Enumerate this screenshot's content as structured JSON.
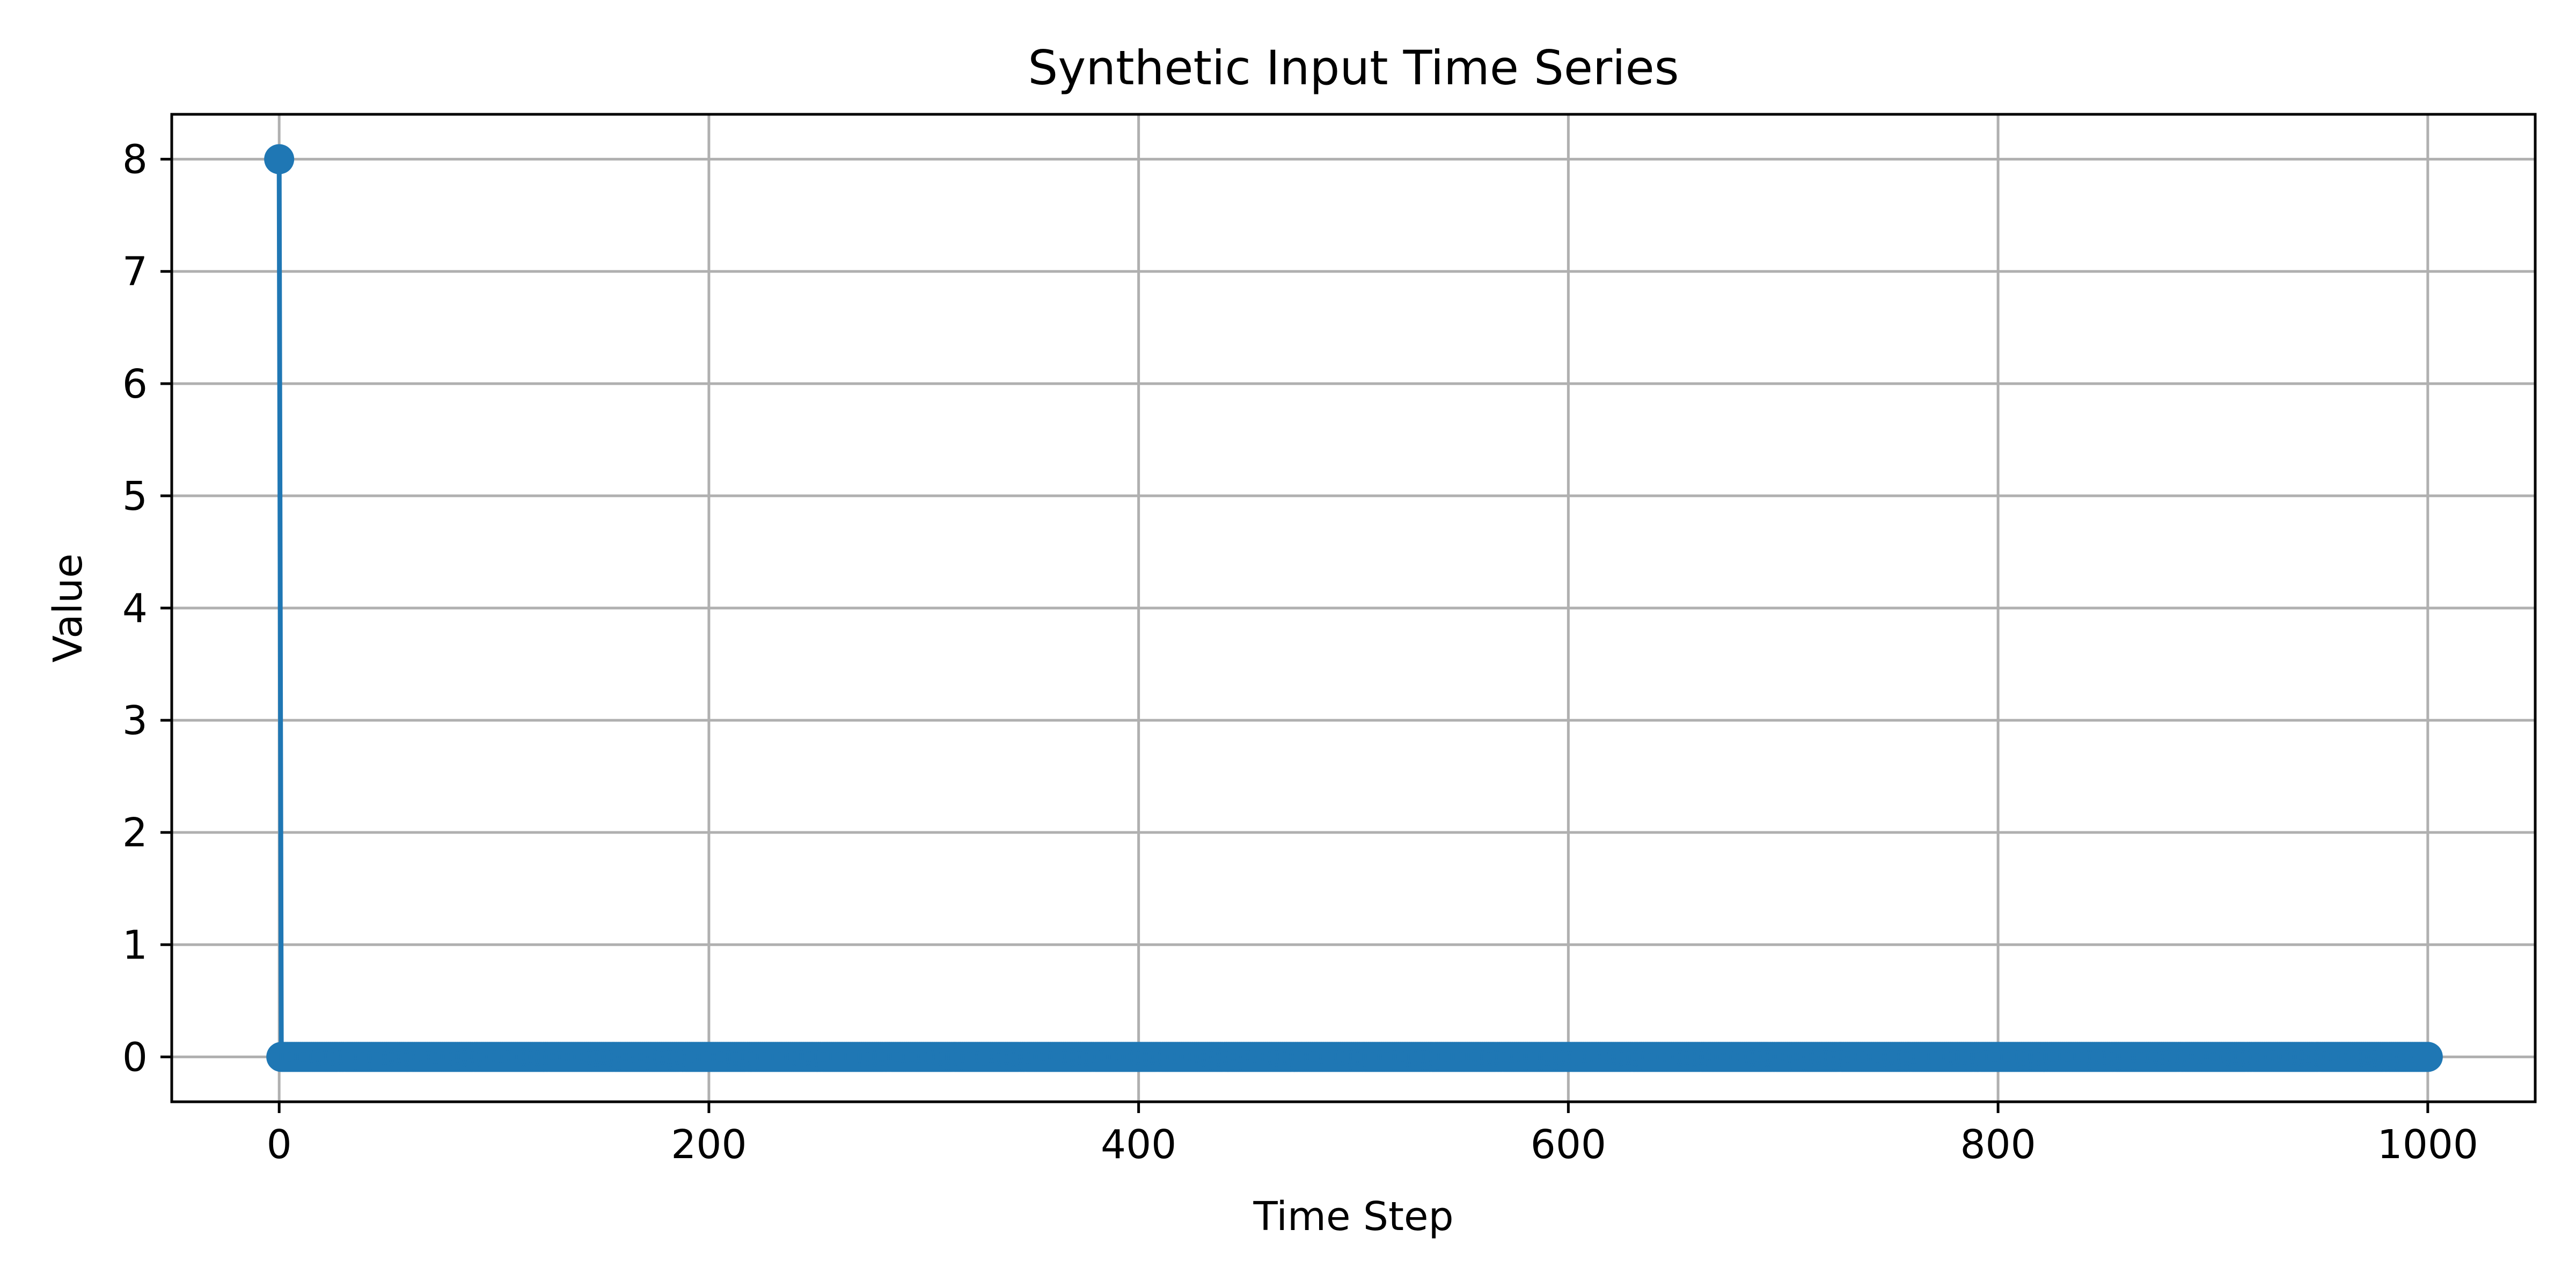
{
  "chart_data": {
    "type": "line",
    "title": "Synthetic Input Time Series",
    "xlabel": "Time Step",
    "ylabel": "Value",
    "xlim": [
      -50,
      1050
    ],
    "ylim": [
      -0.4,
      8.4
    ],
    "xticks": [
      0,
      200,
      400,
      600,
      800,
      1000
    ],
    "yticks": [
      0,
      1,
      2,
      3,
      4,
      5,
      6,
      7,
      8
    ],
    "grid": true,
    "marker": "circle",
    "color": "#1f77b4",
    "series": [
      {
        "x_range": [
          0,
          1000
        ],
        "step": 1,
        "default_value": 0,
        "nonzero_points": [
          {
            "x": 0,
            "y": 8
          }
        ]
      }
    ]
  }
}
